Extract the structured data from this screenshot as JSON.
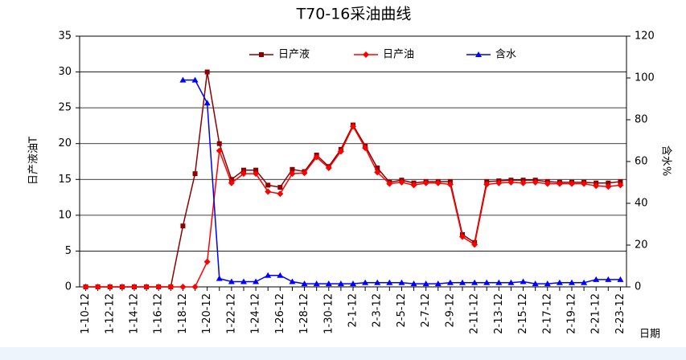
{
  "chart_data": {
    "type": "line",
    "title": "T70-16采油曲线",
    "y_label": "日产液油T",
    "y2_label": "含水%",
    "x_label": "日期",
    "categories": [
      "1-10-12",
      null,
      "1-12-12",
      null,
      "1-14-12",
      null,
      "1-16-12",
      null,
      "1-18-12",
      null,
      "1-20-12",
      null,
      "1-22-12",
      null,
      "1-24-12",
      null,
      "1-26-12",
      null,
      "1-28-12",
      null,
      "1-30-12",
      null,
      "2-1-12",
      null,
      "2-3-12",
      null,
      "2-5-12",
      null,
      "2-7-12",
      null,
      "2-9-12",
      null,
      "2-11-12",
      null,
      "2-13-12",
      null,
      "2-15-12",
      null,
      "2-17-12",
      null,
      "2-19-12",
      null,
      "2-21-12",
      null,
      "2-23-12"
    ],
    "series": [
      {
        "name": "日产液",
        "color": "#8b0000",
        "marker": "square",
        "values": [
          0,
          0,
          0,
          0,
          0,
          0,
          0,
          0,
          8.5,
          15.8,
          30,
          20,
          15,
          16.3,
          16.3,
          14.2,
          13.9,
          16.4,
          16.1,
          18.4,
          16.8,
          19.2,
          22.6,
          19.7,
          16.6,
          14.6,
          14.9,
          14.5,
          14.7,
          14.7,
          14.7,
          7.3,
          6.2,
          14.7,
          14.8,
          14.9,
          14.9,
          14.9,
          14.7,
          14.6,
          14.6,
          14.6,
          14.5,
          14.5,
          14.7
        ]
      },
      {
        "name": "日产油",
        "color": "#ff0000",
        "marker": "diamond",
        "values": [
          0,
          0,
          0,
          0,
          0,
          0,
          0,
          0,
          0,
          0,
          3.5,
          19,
          14.5,
          15.8,
          15.8,
          13.3,
          13,
          15.8,
          15.9,
          18.1,
          16.6,
          18.9,
          22.4,
          19.4,
          16,
          14.4,
          14.6,
          14.2,
          14.5,
          14.5,
          14.3,
          7,
          5.9,
          14.3,
          14.5,
          14.6,
          14.5,
          14.6,
          14.4,
          14.4,
          14.4,
          14.4,
          14.1,
          14,
          14.2
        ]
      },
      {
        "name": "含水",
        "color": "#0000ff",
        "marker": "triangle",
        "axis": "y2",
        "values": [
          null,
          null,
          null,
          null,
          null,
          null,
          null,
          null,
          99,
          99,
          88,
          4,
          2.5,
          2.5,
          2.5,
          5.5,
          5.5,
          2.5,
          1.5,
          1.5,
          1.5,
          1.5,
          1.5,
          2,
          2,
          2,
          2,
          1.5,
          1.5,
          1.5,
          2,
          2,
          2,
          2,
          2,
          2,
          2.5,
          1.5,
          1.5,
          2,
          2,
          2,
          3.5,
          3.5,
          3.5
        ]
      }
    ],
    "ylim": [
      0,
      35
    ],
    "yticks": [
      0,
      5,
      10,
      15,
      20,
      25,
      30,
      35
    ],
    "y2lim": [
      0,
      120
    ],
    "y2ticks": [
      0,
      20,
      40,
      60,
      80,
      100,
      120
    ],
    "grid": true,
    "legend": "top"
  }
}
